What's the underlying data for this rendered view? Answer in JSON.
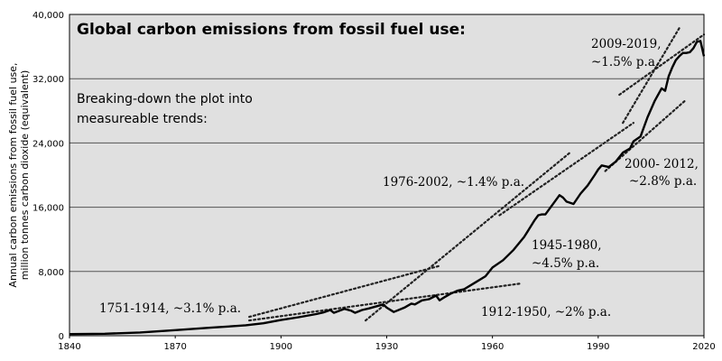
{
  "chart_data": {
    "type": "line",
    "title": "Global carbon emissions from fossil fuel use:",
    "subtitle_lines": [
      "Breaking-down the plot into",
      "measureable trends:"
    ],
    "ylabel_lines": [
      "Annual carbon emissions from fossil fuel use,",
      "million tonnes carbon dioxide (equivalent)"
    ],
    "xlabel": "",
    "xlim": [
      1840,
      2020
    ],
    "ylim": [
      0,
      40000
    ],
    "x_ticks": [
      "1840",
      "1870",
      "1900",
      "1930",
      "1960",
      "1990",
      "2020"
    ],
    "y_ticks": [
      "0",
      "8,000",
      "16,000",
      "24,000",
      "32,000",
      "40,000"
    ],
    "grid": "horizontal",
    "series": [
      {
        "style": "solid",
        "points": [
          [
            1840,
            200
          ],
          [
            1850,
            250
          ],
          [
            1860,
            400
          ],
          [
            1870,
            700
          ],
          [
            1880,
            1000
          ],
          [
            1885,
            1150
          ],
          [
            1890,
            1300
          ],
          [
            1895,
            1550
          ],
          [
            1900,
            1950
          ],
          [
            1905,
            2300
          ],
          [
            1910,
            2700
          ],
          [
            1912,
            2900
          ],
          [
            1914,
            3200
          ],
          [
            1915,
            2850
          ],
          [
            1918,
            3350
          ],
          [
            1920,
            3100
          ],
          [
            1921,
            2850
          ],
          [
            1923,
            3200
          ],
          [
            1925,
            3400
          ],
          [
            1929,
            3900
          ],
          [
            1930,
            3500
          ],
          [
            1932,
            2950
          ],
          [
            1935,
            3500
          ],
          [
            1937,
            4000
          ],
          [
            1938,
            3900
          ],
          [
            1940,
            4400
          ],
          [
            1942,
            4550
          ],
          [
            1944,
            5000
          ],
          [
            1945,
            4400
          ],
          [
            1946,
            4700
          ],
          [
            1948,
            5200
          ],
          [
            1950,
            5600
          ],
          [
            1952,
            5800
          ],
          [
            1955,
            6600
          ],
          [
            1958,
            7400
          ],
          [
            1960,
            8500
          ],
          [
            1963,
            9400
          ],
          [
            1966,
            10700
          ],
          [
            1969,
            12300
          ],
          [
            1970,
            13000
          ],
          [
            1972,
            14400
          ],
          [
            1973,
            15000
          ],
          [
            1974,
            15100
          ],
          [
            1975,
            15100
          ],
          [
            1977,
            16300
          ],
          [
            1979,
            17500
          ],
          [
            1980,
            17200
          ],
          [
            1981,
            16700
          ],
          [
            1983,
            16400
          ],
          [
            1985,
            17700
          ],
          [
            1987,
            18700
          ],
          [
            1989,
            20000
          ],
          [
            1990,
            20700
          ],
          [
            1991,
            21200
          ],
          [
            1993,
            21000
          ],
          [
            1995,
            21700
          ],
          [
            1997,
            22800
          ],
          [
            1999,
            23300
          ],
          [
            2000,
            24200
          ],
          [
            2002,
            24800
          ],
          [
            2004,
            27200
          ],
          [
            2006,
            29200
          ],
          [
            2008,
            30800
          ],
          [
            2009,
            30500
          ],
          [
            2010,
            32300
          ],
          [
            2011,
            33400
          ],
          [
            2012,
            34300
          ],
          [
            2013,
            34800
          ],
          [
            2014,
            35200
          ],
          [
            2015,
            35200
          ],
          [
            2016,
            35300
          ],
          [
            2017,
            35800
          ],
          [
            2018,
            36600
          ],
          [
            2019,
            36700
          ],
          [
            2020,
            34800
          ]
        ]
      }
    ],
    "trend_lines": [
      {
        "label": "1751-1914, ~3.1% p.a.",
        "points": [
          [
            1891,
            2350
          ],
          [
            1945,
            8700
          ]
        ]
      },
      {
        "label": "1912-1950, ~2% p.a.",
        "points": [
          [
            1891,
            1900
          ],
          [
            1968,
            6500
          ]
        ]
      },
      {
        "label": "1945-1980, ~4.5% p.a.",
        "points": [
          [
            1924,
            1900
          ],
          [
            1982,
            22800
          ]
        ]
      },
      {
        "label": "1976-2002, ~1.4% p.a.",
        "points": [
          [
            1962,
            15000
          ],
          [
            2000,
            26500
          ]
        ]
      },
      {
        "label": "2000- 2012, ~2.8% p.a.",
        "points": [
          [
            1992,
            20500
          ],
          [
            2015,
            29400
          ]
        ]
      },
      {
        "label": "2009-2019, ~1.5% p.a.",
        "points": [
          [
            1996,
            30000
          ],
          [
            2020,
            37500
          ]
        ]
      },
      {
        "label": "",
        "points": [
          [
            1997,
            26500
          ],
          [
            2013,
            38300
          ]
        ]
      }
    ],
    "annotations": [
      {
        "text": "1751-1914, ~3.1% p.a."
      },
      {
        "text": "1912-1950, ~2% p.a."
      },
      {
        "lines": [
          "1945-1980,",
          "~4.5% p.a."
        ]
      },
      {
        "text": "1976-2002, ~1.4% p.a."
      },
      {
        "lines": [
          "2000- 2012,",
          "~2.8% p.a."
        ]
      },
      {
        "lines": [
          "2009-2019,",
          "~1.5% p.a."
        ]
      }
    ]
  }
}
